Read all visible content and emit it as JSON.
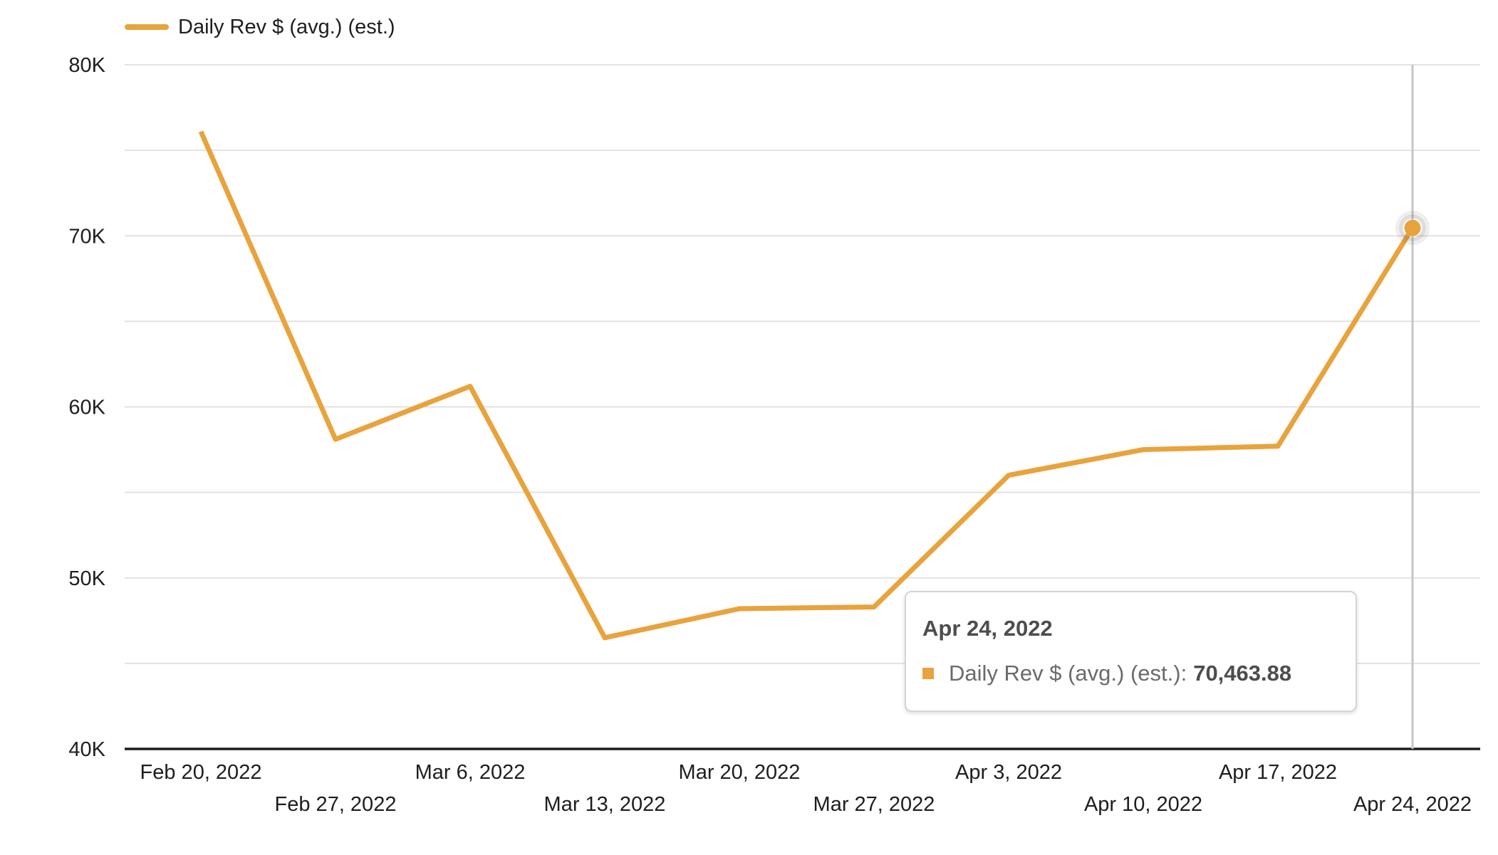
{
  "colors": {
    "series": "#E8A33D",
    "grid": "#e2e2e2",
    "axis_line": "#1d1d1d",
    "axis_text": "#1e1e1e",
    "crosshair": "#c6c6c6",
    "halo": "rgba(80,80,80,0.18)",
    "tooltip_title": "#4d4d4d",
    "tooltip_label": "#6a6a6a",
    "tooltip_border": "#d5d5d5",
    "background": "#ffffff"
  },
  "legend": {
    "label": "Daily Rev $ (avg.) (est.)"
  },
  "y_axis": {
    "ticks": [
      {
        "label": "80K",
        "value": 80000
      },
      {
        "label": "70K",
        "value": 70000
      },
      {
        "label": "60K",
        "value": 60000
      },
      {
        "label": "50K",
        "value": 50000
      },
      {
        "label": "40K",
        "value": 40000
      }
    ]
  },
  "tooltip": {
    "title": "Apr 24, 2022",
    "series_label": "Daily Rev $ (avg.) (est.):",
    "value": "70,463.88"
  },
  "chart_data": {
    "type": "line",
    "title": "",
    "xlabel": "",
    "ylabel": "",
    "categories": [
      "Feb 20, 2022",
      "Feb 27, 2022",
      "Mar 6, 2022",
      "Mar 13, 2022",
      "Mar 20, 2022",
      "Mar 27, 2022",
      "Apr 3, 2022",
      "Apr 10, 2022",
      "Apr 17, 2022",
      "Apr 24, 2022"
    ],
    "series": [
      {
        "name": "Daily Rev $ (avg.) (est.)",
        "values": [
          76100,
          58100,
          61200,
          46500,
          48200,
          48300,
          56000,
          57500,
          57700,
          70463.88
        ]
      }
    ],
    "ylim": [
      40000,
      80000
    ],
    "y_major_step": 10000,
    "y_minor_step": 5000,
    "grid": true,
    "legend_position": "top-left",
    "highlight": {
      "index": 9,
      "formatted_value": "70,463.88"
    }
  }
}
